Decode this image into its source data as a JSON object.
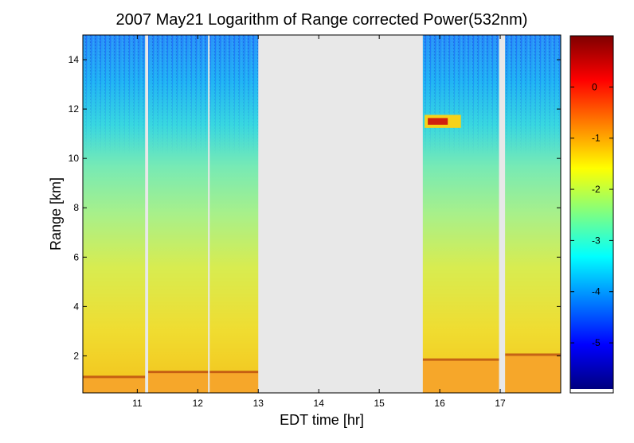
{
  "chart_data": {
    "type": "heatmap",
    "title": "2007 May21  Logarithm of Range corrected Power(532nm)",
    "xlabel": "EDT time [hr]",
    "ylabel": "Range [km]",
    "xlim": [
      10.1,
      18.0
    ],
    "ylim": [
      0.5,
      15.0
    ],
    "xticks": [
      11,
      12,
      13,
      14,
      15,
      16,
      17
    ],
    "yticks": [
      2,
      4,
      6,
      8,
      10,
      12,
      14
    ],
    "colorbar": {
      "range": [
        -5.9,
        1.0
      ],
      "ticks": [
        0,
        -1,
        -2,
        -3,
        -4,
        -5
      ],
      "colormap": "jet",
      "colors": [
        "#00007f",
        "#0000ff",
        "#0080ff",
        "#00ffff",
        "#80ff80",
        "#ffff00",
        "#ff8000",
        "#ff0000",
        "#7f0000"
      ]
    },
    "no_data_intervals": [
      [
        11.13,
        11.18
      ],
      [
        12.17,
        12.19
      ],
      [
        13.0,
        15.72
      ],
      [
        16.98,
        17.08
      ]
    ],
    "no_data_color": "#e8e8e8",
    "features": [
      {
        "label": "boundary layer top",
        "segments": [
          {
            "x": [
              10.1,
              11.13
            ],
            "top_km": 1.1
          },
          {
            "x": [
              11.18,
              13.0
            ],
            "top_km": 1.3
          },
          {
            "x": [
              15.72,
              16.98
            ],
            "top_km": 1.8
          },
          {
            "x": [
              17.08,
              18.0
            ],
            "top_km": 2.0
          }
        ]
      },
      {
        "label": "cirrus layer",
        "x": [
          15.75,
          16.35
        ],
        "range_km": [
          11.3,
          11.7
        ],
        "value": 0.2
      }
    ]
  }
}
